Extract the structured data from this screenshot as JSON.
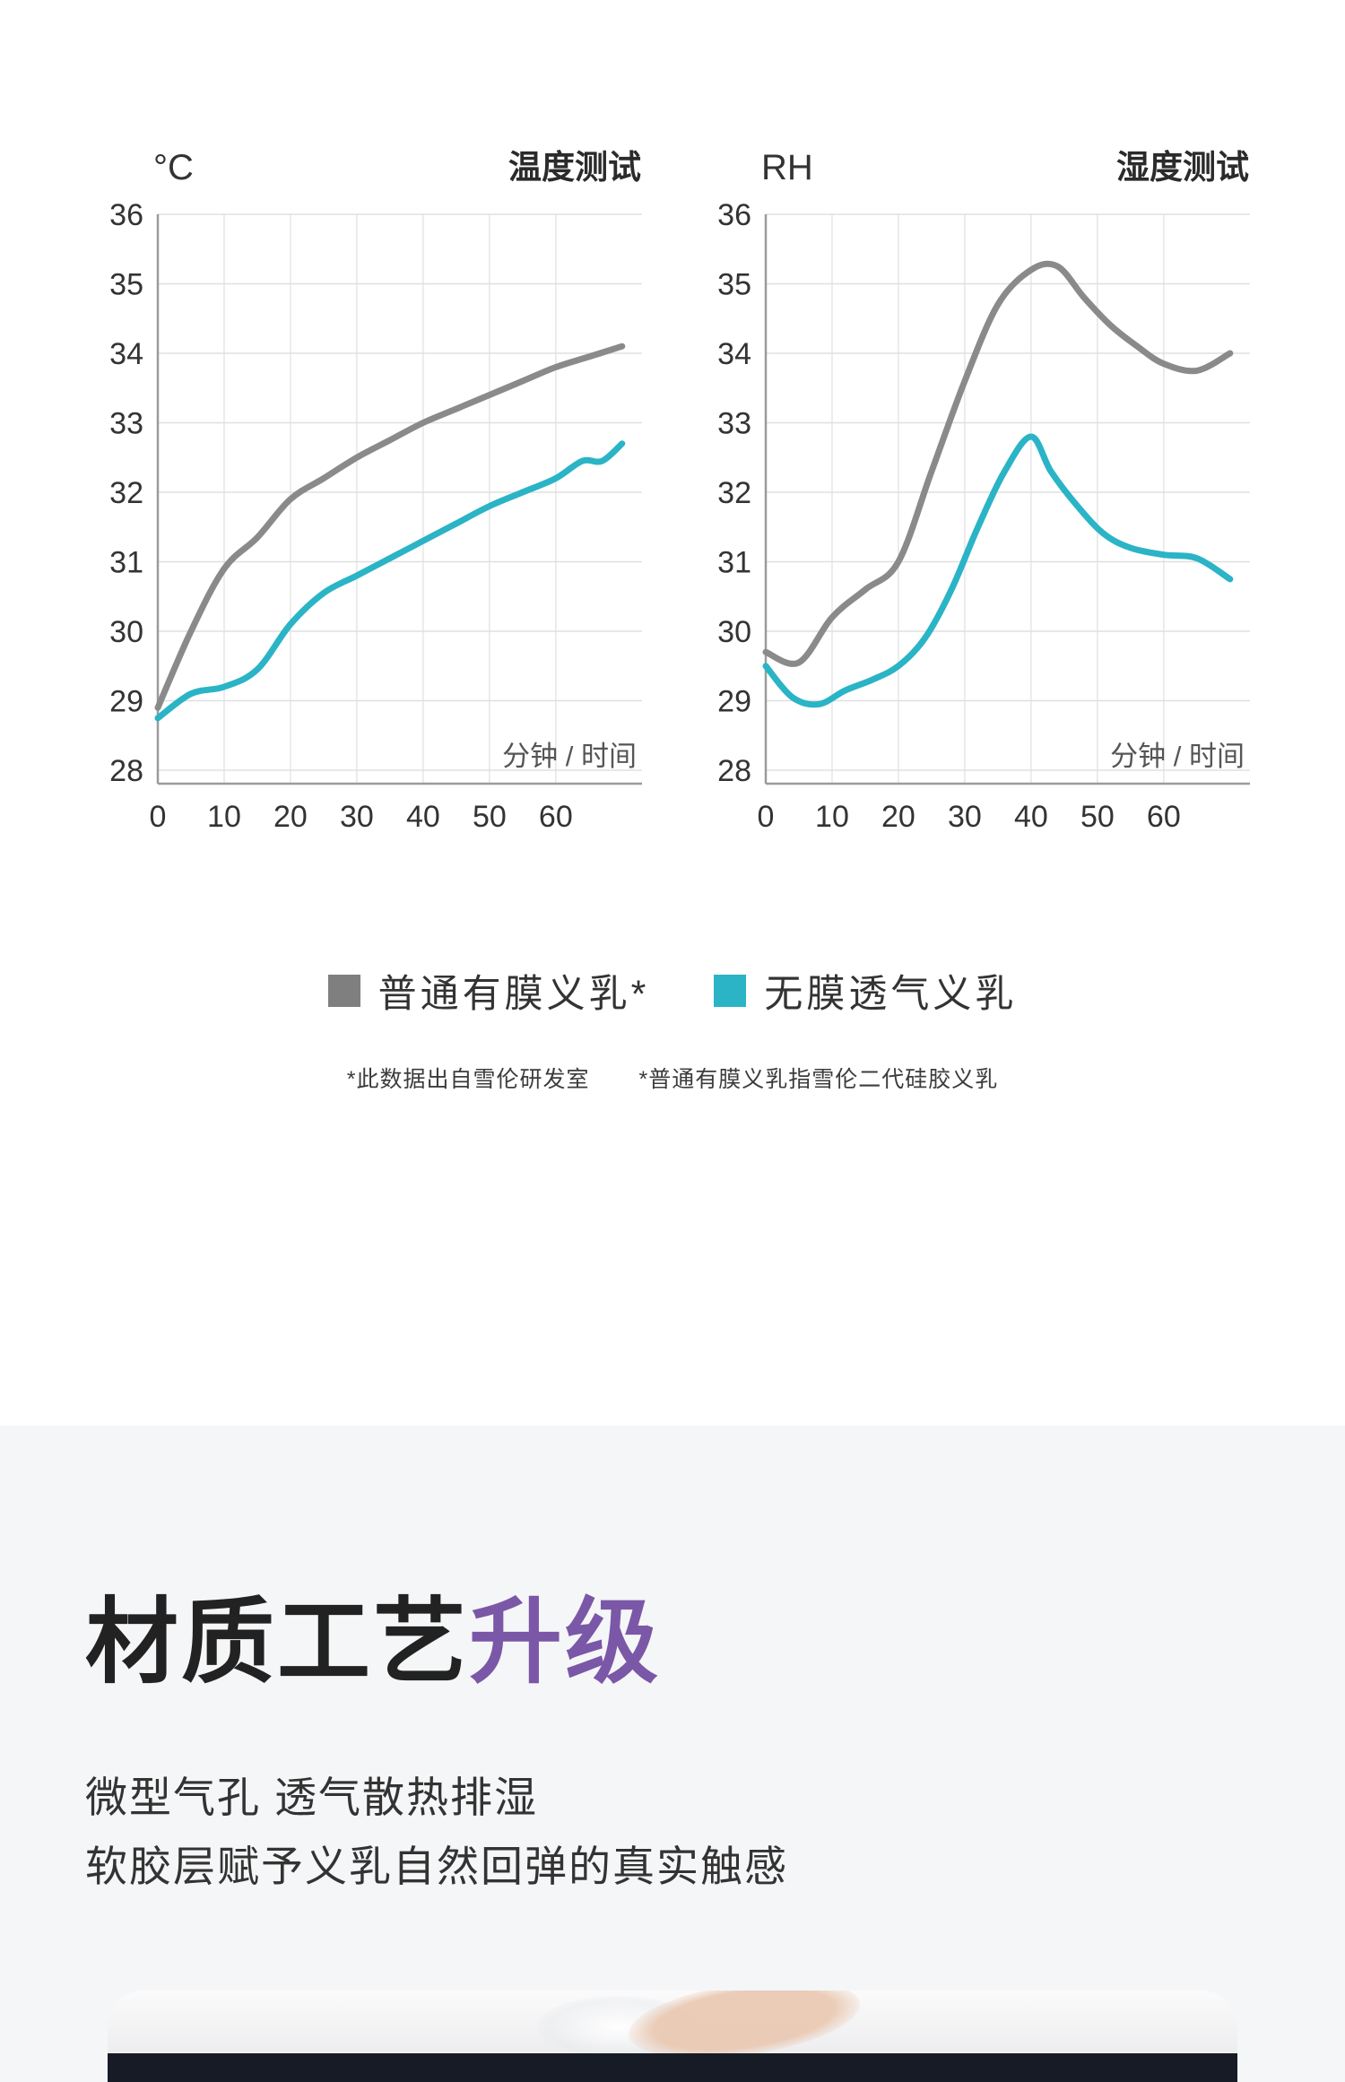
{
  "chart_data": [
    {
      "type": "line",
      "title": "温度测试",
      "unit_label": "°C",
      "xlabel": "分钟 / 时间",
      "xlim": [
        0,
        73
      ],
      "ylim": [
        28,
        36
      ],
      "x_ticks": [
        0,
        10,
        20,
        30,
        40,
        50,
        60
      ],
      "y_ticks": [
        36,
        35,
        34,
        33,
        32,
        31,
        30,
        29,
        28
      ],
      "grid": true,
      "legend_position": "below",
      "series": [
        {
          "name": "普通有膜义乳*",
          "color": "#8a8a8a",
          "x": [
            0,
            5,
            10,
            15,
            20,
            25,
            30,
            35,
            40,
            45,
            50,
            55,
            60,
            65,
            70
          ],
          "y": [
            28.9,
            30.0,
            30.9,
            31.35,
            31.9,
            32.2,
            32.5,
            32.75,
            33.0,
            33.2,
            33.4,
            33.6,
            33.8,
            33.95,
            34.1
          ]
        },
        {
          "name": "无膜透气义乳",
          "color": "#2ab4c6",
          "x": [
            0,
            5,
            10,
            15,
            20,
            25,
            30,
            35,
            40,
            45,
            50,
            55,
            60,
            64,
            67,
            70
          ],
          "y": [
            28.75,
            29.1,
            29.2,
            29.45,
            30.1,
            30.55,
            30.8,
            31.05,
            31.3,
            31.55,
            31.8,
            32.0,
            32.2,
            32.45,
            32.45,
            32.7
          ]
        }
      ]
    },
    {
      "type": "line",
      "title": "湿度测试",
      "unit_label": "RH",
      "xlabel": "分钟 / 时间",
      "xlim": [
        0,
        73
      ],
      "ylim": [
        28,
        36
      ],
      "x_ticks": [
        0,
        10,
        20,
        30,
        40,
        50,
        60
      ],
      "y_ticks": [
        36,
        35,
        34,
        33,
        32,
        31,
        30,
        29,
        28
      ],
      "grid": true,
      "legend_position": "below",
      "series": [
        {
          "name": "普通有膜义乳*",
          "color": "#8a8a8a",
          "x": [
            0,
            5,
            10,
            15,
            20,
            25,
            30,
            35,
            40,
            44,
            48,
            52,
            56,
            60,
            65,
            70
          ],
          "y": [
            29.7,
            29.55,
            30.2,
            30.6,
            31.0,
            32.3,
            33.6,
            34.7,
            35.2,
            35.25,
            34.8,
            34.4,
            34.1,
            33.85,
            33.75,
            34.0
          ]
        },
        {
          "name": "无膜透气义乳",
          "color": "#2ab4c6",
          "x": [
            0,
            4,
            8,
            12,
            16,
            20,
            24,
            28,
            32,
            36,
            40,
            43,
            47,
            51,
            55,
            60,
            65,
            70
          ],
          "y": [
            29.5,
            29.05,
            28.95,
            29.15,
            29.3,
            29.5,
            29.9,
            30.6,
            31.5,
            32.3,
            32.8,
            32.3,
            31.8,
            31.4,
            31.2,
            31.1,
            31.05,
            30.75
          ]
        }
      ]
    }
  ],
  "legend": {
    "items": [
      {
        "label": "普通有膜义乳*",
        "color": "#7f7f7f"
      },
      {
        "label": "无膜透气义乳",
        "color": "#2ab4c6"
      }
    ]
  },
  "footnotes": {
    "note1": "*此数据出自雪伦研发室",
    "note2": "*普通有膜义乳指雪伦二代硅胶义乳"
  },
  "material_section": {
    "title_main": "材质工艺",
    "title_accent": "升级",
    "accent_color": "#7b57a7",
    "line1": "微型气孔 透气散热排湿",
    "line2": "软胶层赋予义乳自然回弹的真实触感"
  }
}
